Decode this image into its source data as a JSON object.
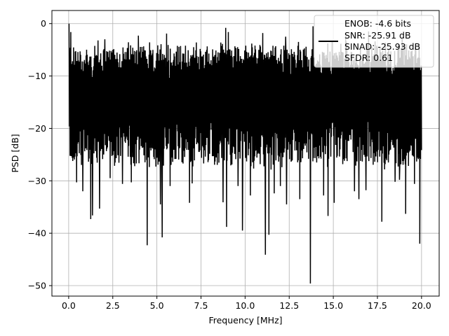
{
  "chart_data": {
    "type": "line",
    "title": "",
    "xlabel": "Frequency [MHz]",
    "ylabel": "PSD [dB]",
    "xlim": [
      -0.95,
      21.0
    ],
    "ylim": [
      -52.0,
      2.5
    ],
    "xticks": [
      0.0,
      2.5,
      5.0,
      7.5,
      10.0,
      12.5,
      15.0,
      17.5,
      20.0
    ],
    "xtick_labels": [
      "0.0",
      "2.5",
      "5.0",
      "7.5",
      "10.0",
      "12.5",
      "15.0",
      "17.5",
      "20.0"
    ],
    "yticks": [
      0,
      -10,
      -20,
      -30,
      -40,
      -50
    ],
    "ytick_labels": [
      "0",
      "−10",
      "−20",
      "−30",
      "−40",
      "−50"
    ],
    "grid": true,
    "legend_position": "top-right",
    "legend": [
      "ENOB: -4.6 bits",
      "SNR: -25.91 dB",
      "SINAD: -25.93 dB",
      "SFDR: 0.61"
    ],
    "series": [
      {
        "color": "#000000",
        "x_range": [
          0.0,
          20.0
        ],
        "noise_band": {
          "top_min": -8,
          "top_max": -3,
          "bottom_min": -20,
          "bottom_max": -28
        },
        "peak": {
          "x": 0.02,
          "y": 0.0
        },
        "dips": [
          {
            "x": 0.45,
            "y": -30.3
          },
          {
            "x": 0.8,
            "y": -32.0
          },
          {
            "x": 1.25,
            "y": -37.3
          },
          {
            "x": 1.35,
            "y": -36.6
          },
          {
            "x": 1.75,
            "y": -35.3
          },
          {
            "x": 2.35,
            "y": -29.5
          },
          {
            "x": 3.05,
            "y": -30.6
          },
          {
            "x": 3.55,
            "y": -30.3
          },
          {
            "x": 4.45,
            "y": -42.3
          },
          {
            "x": 5.3,
            "y": -40.8
          },
          {
            "x": 5.2,
            "y": -34.5
          },
          {
            "x": 5.75,
            "y": -31.0
          },
          {
            "x": 6.85,
            "y": -34.2
          },
          {
            "x": 7.0,
            "y": -30.5
          },
          {
            "x": 8.75,
            "y": -34.1
          },
          {
            "x": 8.95,
            "y": -38.8
          },
          {
            "x": 9.6,
            "y": -31.0
          },
          {
            "x": 9.85,
            "y": -39.5
          },
          {
            "x": 10.3,
            "y": -32.8
          },
          {
            "x": 11.15,
            "y": -44.1
          },
          {
            "x": 11.35,
            "y": -40.3
          },
          {
            "x": 11.65,
            "y": -32.4
          },
          {
            "x": 12.0,
            "y": -31.0
          },
          {
            "x": 12.35,
            "y": -34.5
          },
          {
            "x": 13.1,
            "y": -33.5
          },
          {
            "x": 13.7,
            "y": -49.6
          },
          {
            "x": 14.45,
            "y": -32.8
          },
          {
            "x": 14.7,
            "y": -36.7
          },
          {
            "x": 15.05,
            "y": -34.2
          },
          {
            "x": 16.2,
            "y": -32.0
          },
          {
            "x": 16.45,
            "y": -33.5
          },
          {
            "x": 16.85,
            "y": -31.8
          },
          {
            "x": 17.75,
            "y": -37.8
          },
          {
            "x": 18.5,
            "y": -30.2
          },
          {
            "x": 18.75,
            "y": -29.8
          },
          {
            "x": 19.1,
            "y": -36.3
          },
          {
            "x": 19.6,
            "y": -30.6
          },
          {
            "x": 19.9,
            "y": -42.0
          }
        ],
        "high_spikes": [
          {
            "x": 0.12,
            "y": -1.6
          },
          {
            "x": 2.05,
            "y": -3.0
          },
          {
            "x": 3.95,
            "y": -2.3
          },
          {
            "x": 5.55,
            "y": -1.9
          },
          {
            "x": 8.9,
            "y": -0.8
          },
          {
            "x": 9.05,
            "y": -1.6
          },
          {
            "x": 11.0,
            "y": -1.8
          },
          {
            "x": 12.3,
            "y": -2.5
          },
          {
            "x": 13.85,
            "y": -0.5
          },
          {
            "x": 15.7,
            "y": -2.3
          },
          {
            "x": 17.0,
            "y": -1.5
          },
          {
            "x": 18.9,
            "y": -2.8
          }
        ]
      }
    ]
  }
}
